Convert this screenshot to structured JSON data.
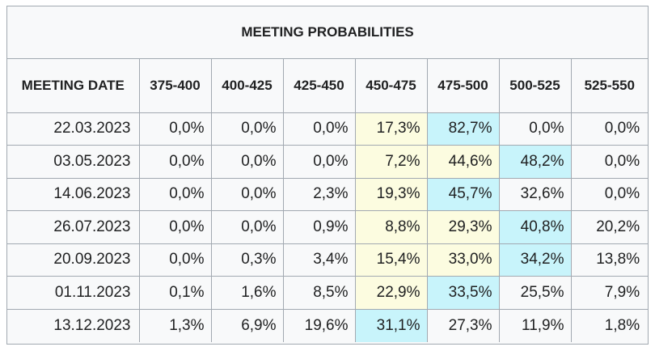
{
  "chart_data": {
    "type": "table",
    "title": "MEETING PROBABILITIES",
    "columns": [
      "MEETING DATE",
      "375-400",
      "400-425",
      "425-450",
      "450-475",
      "475-500",
      "500-525",
      "525-550"
    ],
    "rows": [
      {
        "date": "22.03.2023",
        "values": [
          "0,0%",
          "0,0%",
          "0,0%",
          "17,3%",
          "82,7%",
          "0,0%",
          "0,0%"
        ],
        "highlight": [
          "",
          "",
          "",
          "secondary",
          "primary",
          "",
          ""
        ]
      },
      {
        "date": "03.05.2023",
        "values": [
          "0,0%",
          "0,0%",
          "0,0%",
          "7,2%",
          "44,6%",
          "48,2%",
          "0,0%"
        ],
        "highlight": [
          "",
          "",
          "",
          "secondary",
          "secondary",
          "primary",
          ""
        ]
      },
      {
        "date": "14.06.2023",
        "values": [
          "0,0%",
          "0,0%",
          "2,3%",
          "19,3%",
          "45,7%",
          "32,6%",
          "0,0%"
        ],
        "highlight": [
          "",
          "",
          "",
          "secondary",
          "primary",
          "",
          ""
        ]
      },
      {
        "date": "26.07.2023",
        "values": [
          "0,0%",
          "0,0%",
          "0,9%",
          "8,8%",
          "29,3%",
          "40,8%",
          "20,2%"
        ],
        "highlight": [
          "",
          "",
          "",
          "secondary",
          "secondary",
          "primary",
          ""
        ]
      },
      {
        "date": "20.09.2023",
        "values": [
          "0,0%",
          "0,3%",
          "3,4%",
          "15,4%",
          "33,0%",
          "34,2%",
          "13,8%"
        ],
        "highlight": [
          "",
          "",
          "",
          "secondary",
          "secondary",
          "primary",
          ""
        ]
      },
      {
        "date": "01.11.2023",
        "values": [
          "0,1%",
          "1,6%",
          "8,5%",
          "22,9%",
          "33,5%",
          "25,5%",
          "7,9%"
        ],
        "highlight": [
          "",
          "",
          "",
          "secondary",
          "primary",
          "",
          ""
        ]
      },
      {
        "date": "13.12.2023",
        "values": [
          "1,3%",
          "6,9%",
          "19,6%",
          "31,1%",
          "27,3%",
          "11,9%",
          "1,8%"
        ],
        "highlight": [
          "",
          "",
          "",
          "primary",
          "",
          "",
          ""
        ]
      }
    ],
    "colors": {
      "primary_highlight": "#c8f4fb",
      "secondary_highlight": "#fcfce0",
      "background": "#f8f9fa",
      "border": "#a2a9b1"
    }
  }
}
